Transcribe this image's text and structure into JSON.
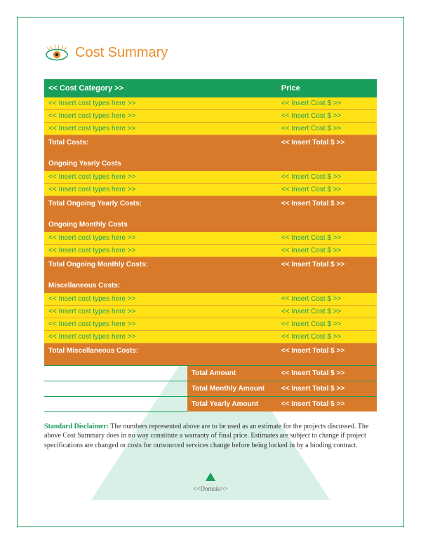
{
  "title": "Cost Summary",
  "colors": {
    "border": "#1a9e5c",
    "title": "#e8902b",
    "header_bg": "#1a9e5c",
    "header_fg": "#ffffff",
    "item_bg": "#ffe215",
    "item_fg": "#1a9e5c",
    "section_bg": "#d97a2b",
    "section_fg": "#ffffff",
    "pyramid": "#d8f0e6"
  },
  "table": {
    "header": {
      "category": "<< Cost Category >>",
      "price": "Price"
    },
    "groups": [
      {
        "items": [
          {
            "label": "<< Insert cost types here >>",
            "price": "<< Insert Cost $ >>"
          },
          {
            "label": "<< Insert cost types here >>",
            "price": "<< Insert Cost $ >>"
          },
          {
            "label": "<< Insert cost types here >>",
            "price": "<< Insert Cost $ >>"
          }
        ],
        "total_label": "Total Costs:",
        "total_value": "<< Insert Total $ >>",
        "next_section": "Ongoing Yearly Costs"
      },
      {
        "items": [
          {
            "label": "<< Insert cost types here >>",
            "price": "<< Insert Cost $ >>"
          },
          {
            "label": "<< Insert cost types here >>",
            "price": "<< Insert Cost $ >>"
          }
        ],
        "total_label": "Total Ongoing Yearly Costs:",
        "total_value": "<< Insert Total $ >>",
        "next_section": "Ongoing Monthly Costs"
      },
      {
        "items": [
          {
            "label": "<< Insert cost types here >>",
            "price": "<< Insert Cost $ >>"
          },
          {
            "label": "<< Insert cost types here >>",
            "price": "<< Insert Cost $ >>"
          }
        ],
        "total_label": "Total Ongoing Monthly Costs:",
        "total_value": "<< Insert Total $ >>",
        "next_section": "Miscellaneous Costs:"
      },
      {
        "items": [
          {
            "label": "<< Insert cost types here >>",
            "price": "<< Insert Cost $ >>"
          },
          {
            "label": "<< Insert cost types here >>",
            "price": "<< Insert Cost $ >>"
          },
          {
            "label": "<< Insert cost types here >>",
            "price": "<< Insert Cost $ >>"
          },
          {
            "label": "<< Insert cost types here >>",
            "price": "<< Insert Cost $ >>"
          }
        ],
        "total_label": "Total Miscellaneous Costs:",
        "total_value": "<< Insert Total $ >>",
        "next_section": null
      }
    ],
    "summary": [
      {
        "label": "Total Amount",
        "value": "<< Insert Total $ >>"
      },
      {
        "label": "Total Monthly Amount",
        "value": "<< Insert Total $ >>"
      },
      {
        "label": "Total Yearly Amount",
        "value": "<< Insert Total $ >>"
      }
    ]
  },
  "disclaimer": {
    "lead": "Standard Disclaimer:",
    "text": "The numbers represented above are to be used as an estimate for the projects discussed. The above Cost Summary does in no way constitute a warranty of final price.  Estimates are subject to change if project specifications are changed or costs for outsourced services change before being locked in by a binding contract."
  },
  "footer": "<<Domain>>"
}
